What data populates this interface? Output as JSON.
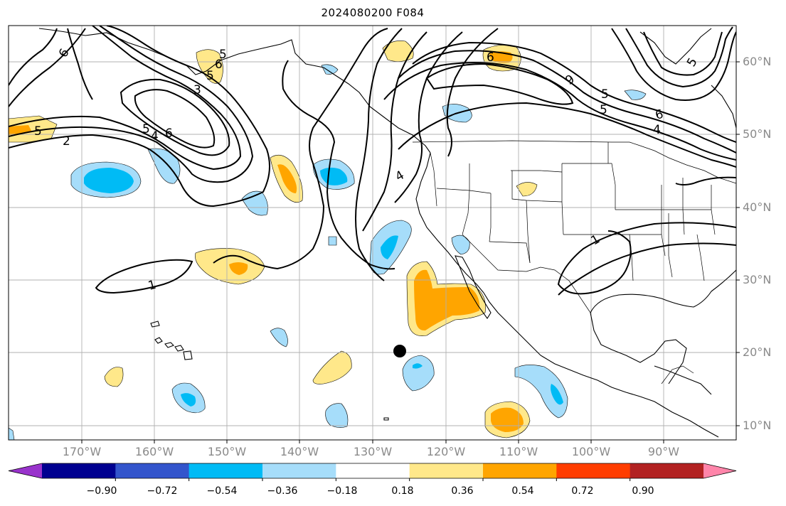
{
  "title": "2024080200 F084",
  "lat_labels": [
    "60°N",
    "50°N",
    "40°N",
    "30°N",
    "20°N",
    "10°N"
  ],
  "lon_labels": [
    "170°W",
    "160°W",
    "150°W",
    "140°W",
    "130°W",
    "120°W",
    "110°W",
    "100°W",
    "90°W"
  ],
  "colorbar": {
    "colors": [
      "#9933cc",
      "#000090",
      "#3355cc",
      "#00bbf5",
      "#a6ddfa",
      "#ffffff",
      "#ffe88a",
      "#ffa500",
      "#ff3d00",
      "#b22222",
      "#ff85aa"
    ],
    "labels": [
      "−0.90",
      "−0.72",
      "−0.54",
      "−0.36",
      "−0.18",
      "0.18",
      "0.36",
      "0.54",
      "0.72",
      "0.90"
    ]
  },
  "contour_labels": [
    "6",
    "5",
    "3",
    "5",
    "6",
    "2",
    "5",
    "6",
    "4",
    "5",
    "1",
    "4",
    "6",
    "9",
    "5",
    "1",
    "5",
    "6",
    "4",
    "5"
  ],
  "colors": {
    "light_blue": "#a6ddfa",
    "blue": "#00bbf5",
    "light_yellow": "#ffe88a",
    "orange": "#ffa500",
    "grid": "#b0b0b0",
    "contour": "#000000"
  },
  "marker": "storm-position-dot"
}
